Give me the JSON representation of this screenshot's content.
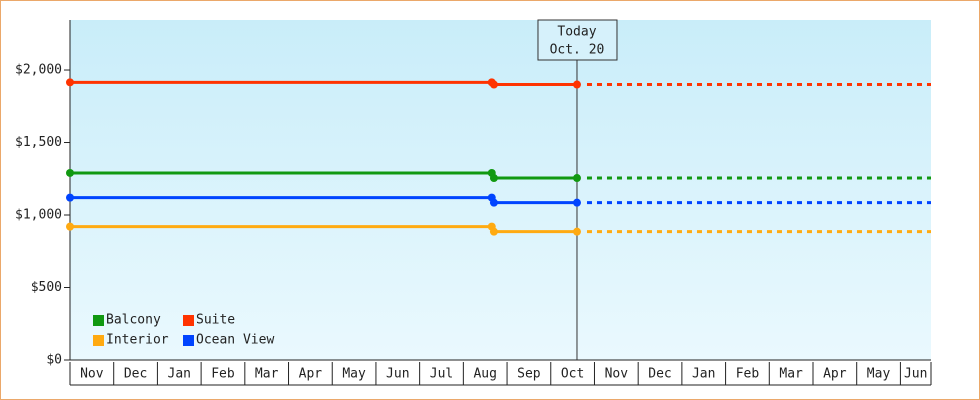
{
  "chart_data": {
    "type": "line",
    "categories": [
      "Nov",
      "Dec",
      "Jan",
      "Feb",
      "Mar",
      "Apr",
      "May",
      "Jun",
      "Jul",
      "Aug",
      "Sep",
      "Oct",
      "Nov",
      "Dec",
      "Jan",
      "Feb",
      "Mar",
      "Apr",
      "May",
      "Jun"
    ],
    "x": [
      0,
      9.65,
      9.7,
      11.6
    ],
    "xlim": [
      0,
      19.7
    ],
    "series": [
      {
        "name": "Balcony",
        "color": "#119911",
        "values": [
          1290,
          1290,
          1255,
          1255
        ]
      },
      {
        "name": "Suite",
        "color": "#ff3300",
        "values": [
          1915,
          1915,
          1900,
          1900
        ]
      },
      {
        "name": "Interior",
        "color": "#ffaa11",
        "values": [
          920,
          920,
          885,
          885
        ]
      },
      {
        "name": "Ocean View",
        "color": "#0044ff",
        "values": [
          1120,
          1120,
          1085,
          1085
        ]
      }
    ],
    "ylim": [
      0,
      2345
    ],
    "yticks": [
      {
        "value": 0,
        "label": "$0"
      },
      {
        "value": 500,
        "label": "$500"
      },
      {
        "value": 1000,
        "label": "$1,000"
      },
      {
        "value": 1500,
        "label": "$1,500"
      },
      {
        "value": 2000,
        "label": "$2,000"
      }
    ],
    "today": {
      "x": 11.6,
      "label": "Today",
      "date": "Oct. 20"
    },
    "legend": "lower left"
  }
}
